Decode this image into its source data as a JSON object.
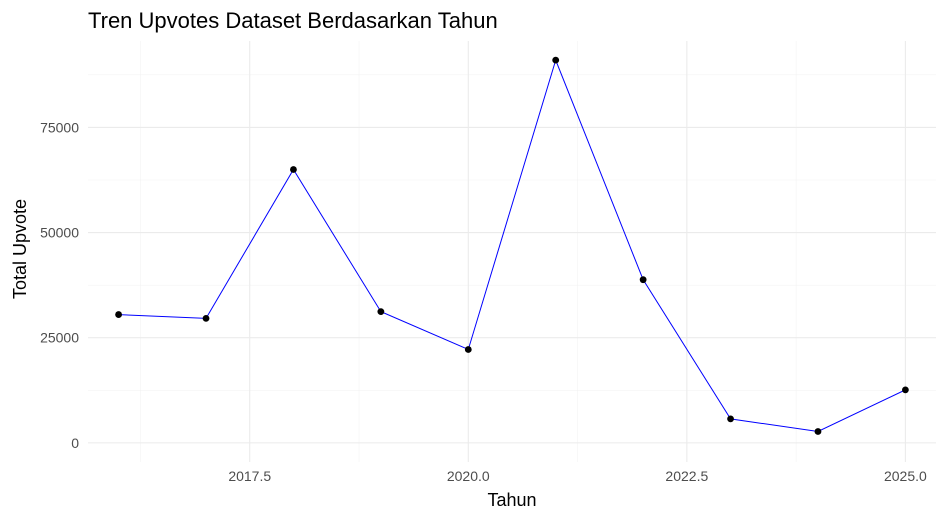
{
  "chart_data": {
    "type": "line",
    "title": "Tren Upvotes Dataset Berdasarkan Tahun",
    "xlabel": "Tahun",
    "ylabel": "Total Upvote",
    "x": [
      2016,
      2017,
      2018,
      2019,
      2020,
      2021,
      2022,
      2023,
      2024,
      2025
    ],
    "series": [
      {
        "values": [
          30500,
          29600,
          65000,
          31200,
          22200,
          91000,
          38800,
          5700,
          2700,
          12600
        ],
        "line_color": "#0000ff",
        "point_color": "#000000"
      }
    ],
    "xlim": [
      2015.65,
      2025.35
    ],
    "ylim": [
      -4550,
      95550
    ],
    "x_ticks": [
      2017.5,
      2020.0,
      2022.5,
      2025.0
    ],
    "x_tick_labels": [
      "2017.5",
      "2020.0",
      "2022.5",
      "2025.0"
    ],
    "y_ticks": [
      0,
      25000,
      50000,
      75000
    ],
    "y_tick_labels": [
      "0",
      "25000",
      "50000",
      "75000"
    ],
    "grid": true,
    "legend": "none"
  }
}
